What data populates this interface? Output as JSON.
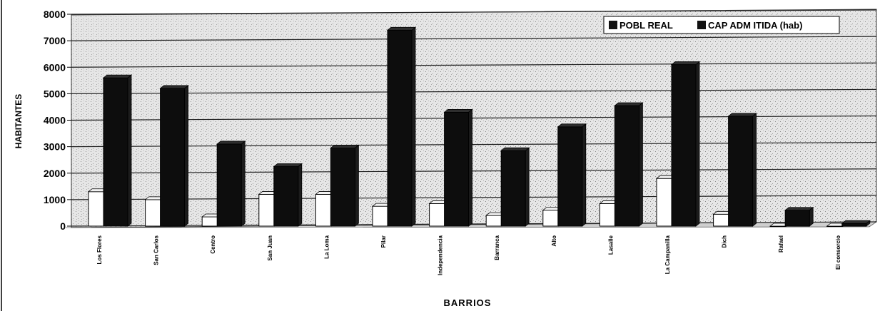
{
  "chart_data": {
    "type": "bar",
    "ylabel": "HABITANTES",
    "xlabel": "BARRIOS",
    "ylim": [
      0,
      8000
    ],
    "yticks": [
      "0",
      "1000",
      "2000",
      "3000",
      "4000",
      "5000",
      "6000",
      "7000",
      "8000"
    ],
    "grid": true,
    "legend_position": "top-right",
    "categories": [
      "Los Flores",
      "San Carlos",
      "Centro",
      "San Juan",
      "La Loma",
      "Pilar",
      "Independencia",
      "Barranca",
      "Alto",
      "Lasalle",
      "La Campanilla",
      "Dich",
      "Rafael",
      "El consorcio"
    ],
    "series": [
      {
        "name": "POBL REAL",
        "color": "#ffffff",
        "values": [
          1300,
          1000,
          350,
          1200,
          1200,
          750,
          850,
          400,
          600,
          850,
          1800,
          450,
          0,
          0
        ]
      },
      {
        "name": "CAP ADM ITIDA (hab)",
        "color": "#111111",
        "values": [
          5600,
          5200,
          3100,
          2250,
          2950,
          7400,
          4300,
          2850,
          3750,
          4550,
          6100,
          4150,
          600,
          100
        ]
      }
    ]
  }
}
